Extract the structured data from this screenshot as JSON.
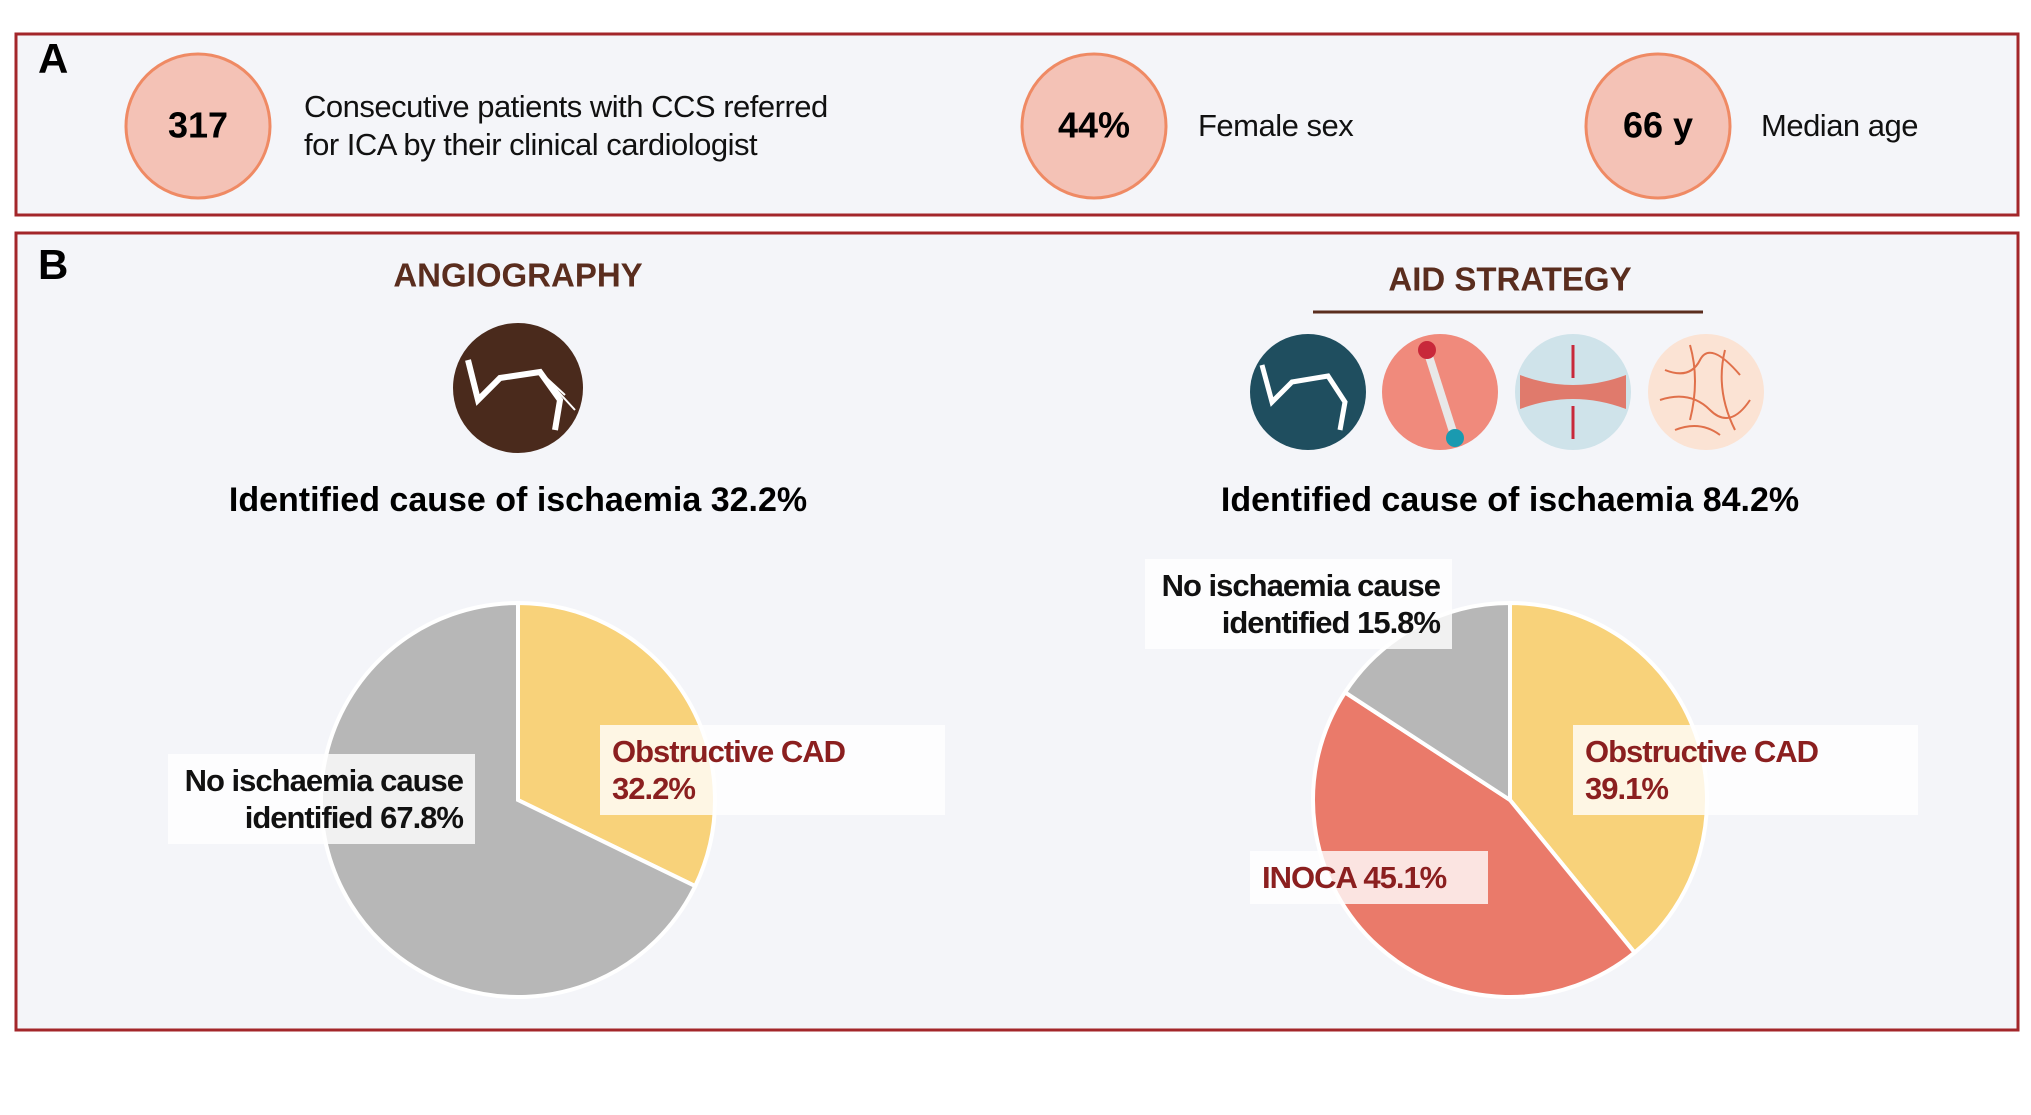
{
  "panel_a": {
    "letter": "A",
    "stats": [
      {
        "value": "317",
        "text": "Consecutive patients with CCS referred for ICA by their clinical cardiologist"
      },
      {
        "value": "44%",
        "text": "Female sex"
      },
      {
        "value": "66 y",
        "text": "Median age"
      }
    ]
  },
  "panel_b": {
    "letter": "B"
  },
  "chart_data": [
    {
      "type": "pie",
      "title": "ANGIOGRAPHY",
      "subtitle": "Identified cause of ischaemia 32.2%",
      "values": [
        32.2,
        67.8
      ],
      "value_labels": [
        "Obstructive CAD 32.2%",
        "No ischaemia cause identified 67.8%"
      ],
      "colors": [
        "#f8d27a",
        "#b7b7b7"
      ]
    },
    {
      "type": "pie",
      "title": "AID STRATEGY",
      "subtitle": "Identified cause of ischaemia 84.2%",
      "values": [
        39.1,
        45.1,
        15.8
      ],
      "value_labels": [
        "Obstructive CAD 39.1%",
        "INOCA 45.1%",
        "No ischaemia cause identified 15.8%"
      ],
      "colors": [
        "#f8d27a",
        "#ea7a6a",
        "#b7b7b7"
      ]
    }
  ]
}
